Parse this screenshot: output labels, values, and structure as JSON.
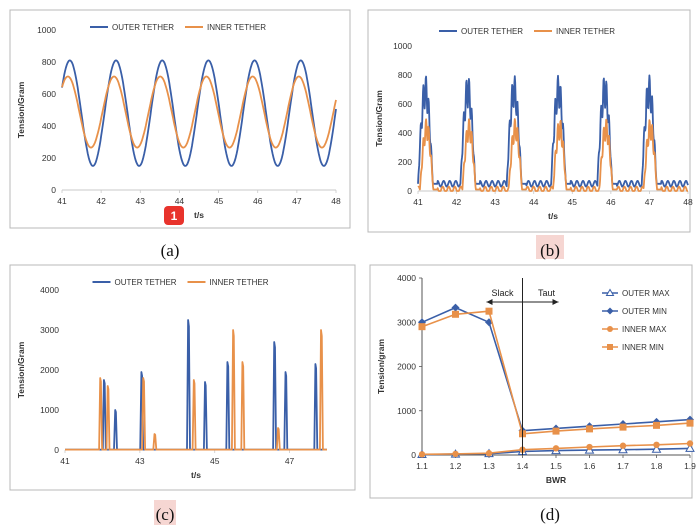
{
  "colors": {
    "outer": "#3a5fa8",
    "inner": "#e8914a",
    "axis": "#c8c8c8",
    "frame": "#b8b8b8",
    "highlight": "#f6d6d2",
    "badge": "#e8332c"
  },
  "badge": {
    "text": "1"
  },
  "chart_data": [
    {
      "id": "a",
      "caption": "(a)",
      "type": "line",
      "legend": [
        "OUTER TETHER",
        "INNER TETHER"
      ],
      "legend_placement": "top",
      "xlabel": "t/s",
      "ylabel": "Tension/Gram",
      "xlim": [
        41,
        48
      ],
      "ylim": [
        0,
        1000
      ],
      "xticks": [
        "41",
        "42",
        "43",
        "44",
        "45",
        "46",
        "47",
        "48"
      ],
      "yticks": [
        "0",
        "200",
        "400",
        "600",
        "800",
        "1000"
      ],
      "series": [
        {
          "name": "OUTER TETHER",
          "period": 1.18,
          "peak_times": [
            41.2,
            42.4,
            43.6,
            44.75,
            45.95,
            47.1
          ],
          "max": 810,
          "min": 150
        },
        {
          "name": "INNER TETHER",
          "period": 1.18,
          "peak_times": [
            41.15,
            42.35,
            43.55,
            44.7,
            45.9,
            47.05
          ],
          "max": 710,
          "min": 265
        }
      ]
    },
    {
      "id": "b",
      "caption": "(b)",
      "type": "line",
      "legend": [
        "OUTER TETHER",
        "INNER TETHER"
      ],
      "legend_placement": "top",
      "xlabel": "t/s",
      "ylabel": "Tension/Gram",
      "xlim": [
        41,
        48
      ],
      "ylim": [
        0,
        1000
      ],
      "xticks": [
        "41",
        "42",
        "43",
        "44",
        "45",
        "46",
        "47",
        "48"
      ],
      "yticks": [
        "0",
        "200",
        "400",
        "600",
        "800",
        "1000"
      ],
      "series": [
        {
          "name": "OUTER TETHER",
          "pulse_starts": [
            41.0,
            42.1,
            43.3,
            44.45,
            45.65,
            46.8
          ],
          "pulse_width": 0.5,
          "max": 800,
          "min": 50
        },
        {
          "name": "INNER TETHER",
          "pulse_starts": [
            41.05,
            42.15,
            43.35,
            44.5,
            45.7,
            46.85
          ],
          "pulse_width": 0.45,
          "max": 500,
          "min": 10
        }
      ]
    },
    {
      "id": "c",
      "caption": "(c)",
      "type": "line",
      "legend": [
        "OUTER TETHER",
        "INNER TETHER"
      ],
      "legend_placement": "top",
      "xlabel": "t/s",
      "ylabel": "Tension/Gram",
      "xlim": [
        41,
        48
      ],
      "ylim": [
        0,
        4000
      ],
      "xticks": [
        "41",
        "43",
        "45",
        "47"
      ],
      "yticks": [
        "0",
        "1000",
        "2000",
        "3000",
        "4000"
      ],
      "series": [
        {
          "name": "OUTER TETHER",
          "spikes": [
            [
              42.05,
              1750
            ],
            [
              42.35,
              1000
            ],
            [
              43.05,
              1950
            ],
            [
              44.3,
              3250
            ],
            [
              44.75,
              1700
            ],
            [
              45.35,
              2200
            ],
            [
              46.6,
              2700
            ],
            [
              46.9,
              1950
            ],
            [
              47.7,
              2150
            ]
          ]
        },
        {
          "name": "INNER TETHER",
          "spikes": [
            [
              41.95,
              1800
            ],
            [
              42.15,
              1600
            ],
            [
              43.1,
              1800
            ],
            [
              43.4,
              400
            ],
            [
              44.45,
              1750
            ],
            [
              45.5,
              3000
            ],
            [
              45.75,
              2200
            ],
            [
              46.7,
              550
            ],
            [
              47.85,
              3000
            ]
          ]
        }
      ]
    },
    {
      "id": "d",
      "caption": "(d)",
      "type": "line",
      "legend": [
        "OUTER MAX",
        "OUTER MIN",
        "INNER MAX",
        "INNER MIN"
      ],
      "legend_placement": "right",
      "xlabel": "BWR",
      "ylabel": "Tension/gram",
      "xlim": [
        1.1,
        1.9
      ],
      "ylim": [
        0,
        4000
      ],
      "categories": [
        1.1,
        1.2,
        1.3,
        1.4,
        1.5,
        1.6,
        1.7,
        1.8,
        1.9
      ],
      "yticks": [
        "0",
        "1000",
        "2000",
        "3000",
        "4000"
      ],
      "annotations": [
        "Slack",
        "Taut"
      ],
      "series": [
        {
          "name": "OUTER MAX",
          "marker": "triangle",
          "values": [
            10,
            20,
            30,
            80,
            100,
            110,
            120,
            130,
            150
          ]
        },
        {
          "name": "OUTER MIN",
          "marker": "diamond",
          "values": [
            3000,
            3330,
            3000,
            550,
            600,
            650,
            700,
            750,
            800
          ]
        },
        {
          "name": "INNER MAX",
          "marker": "circle",
          "values": [
            15,
            25,
            40,
            120,
            150,
            180,
            210,
            230,
            260
          ]
        },
        {
          "name": "INNER MIN",
          "marker": "square",
          "values": [
            2900,
            3180,
            3250,
            480,
            540,
            590,
            630,
            670,
            720
          ]
        }
      ]
    }
  ]
}
